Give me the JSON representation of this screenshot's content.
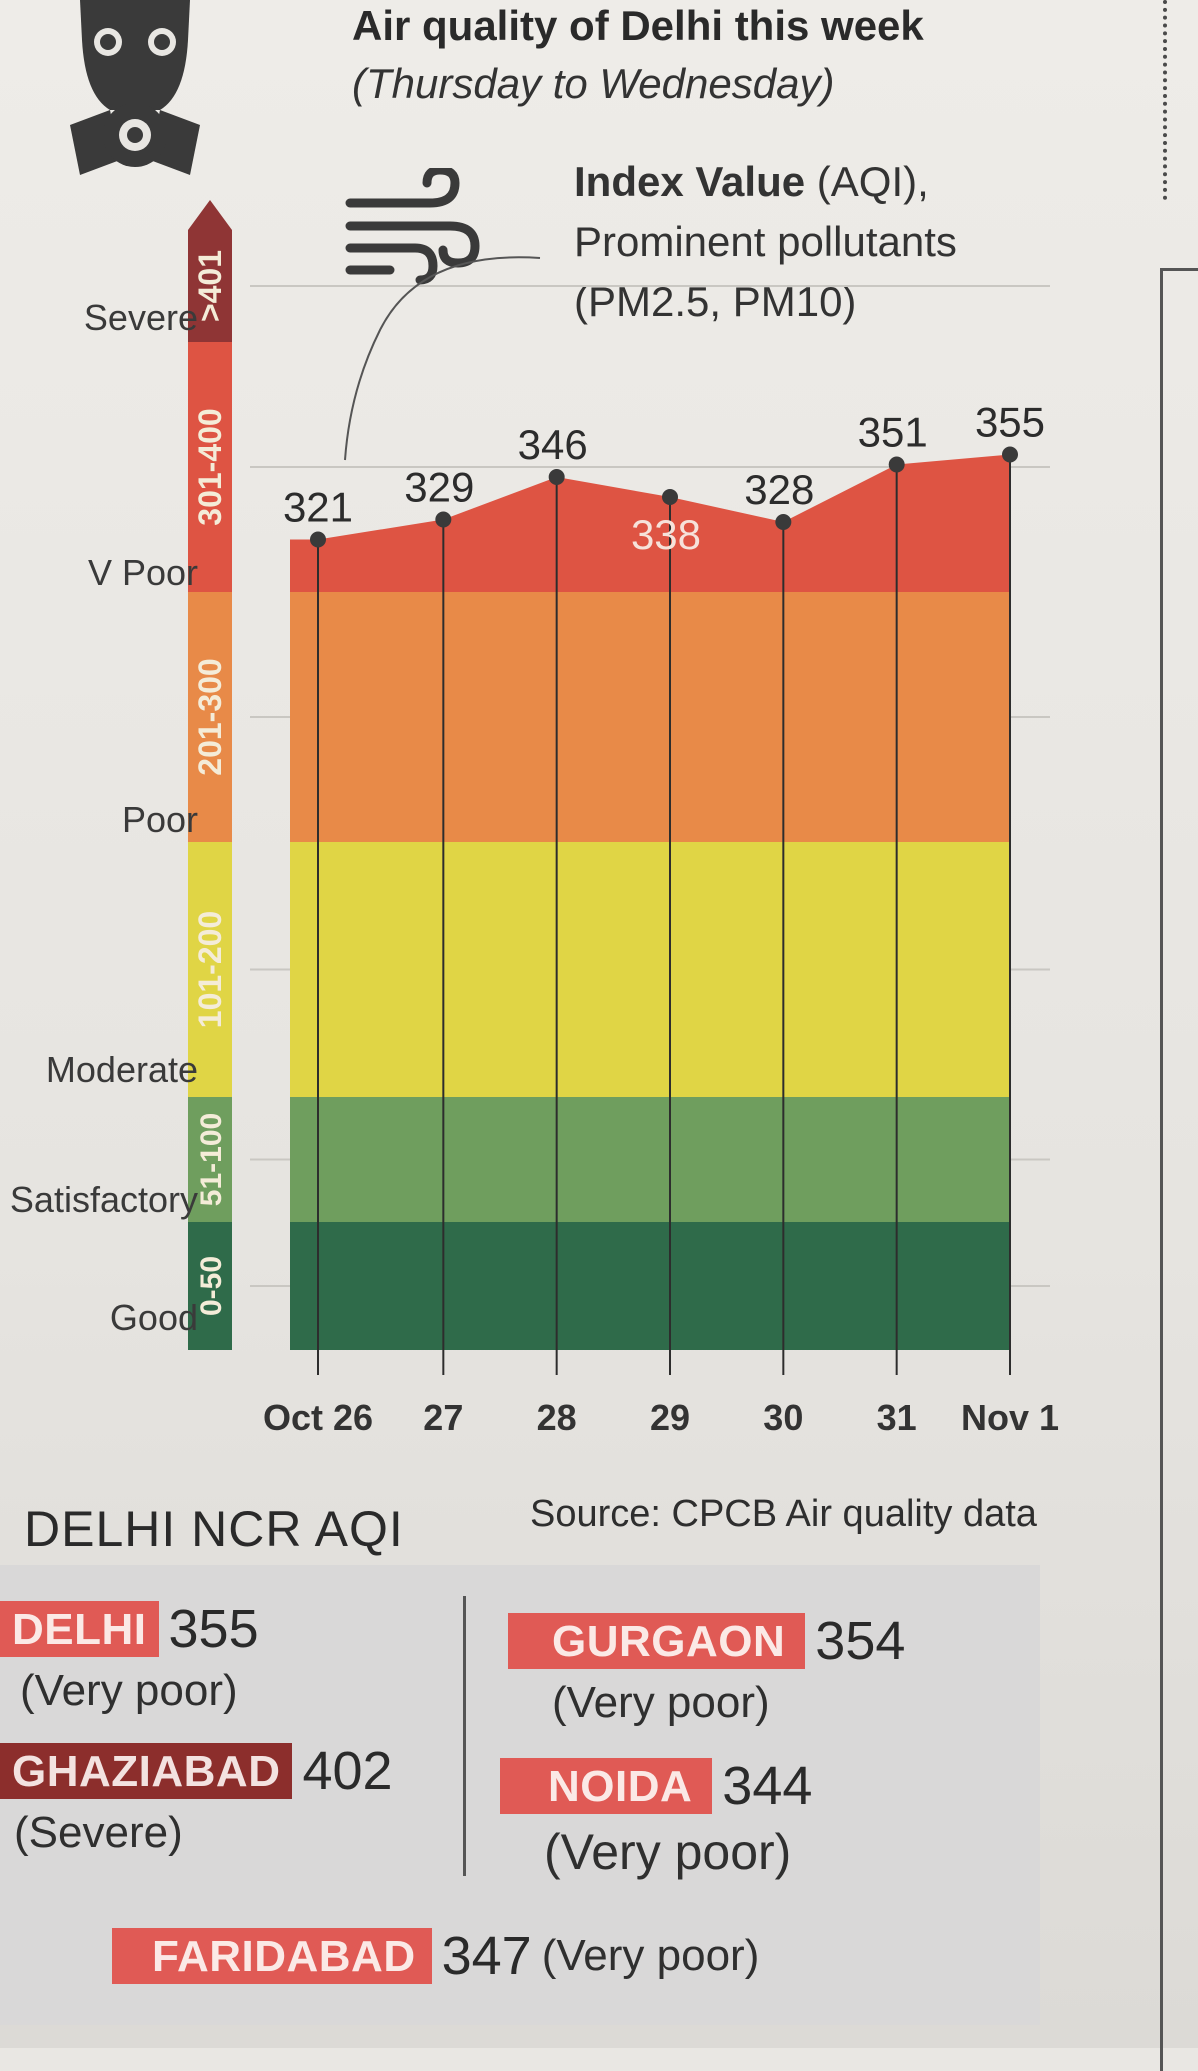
{
  "header": {
    "title": "Air quality of Delhi this week",
    "subtitle": "(Thursday to Wednesday)",
    "legend_bold": "Index Value",
    "legend_rest": " (AQI),",
    "legend_line2": "Prominent pollutants",
    "legend_line3": "(PM2.5, PM10)"
  },
  "icons": {
    "mask": "gas-mask-icon",
    "wind": "wind-icon"
  },
  "colors": {
    "good": "#2f6b4a",
    "satisfactory": "#6f9e5e",
    "moderate": "#e0d545",
    "poor": "#e88a48",
    "very_poor": "#de5443",
    "severe": "#8f3535",
    "tag": "#e05a55",
    "tag_severe": "#8c2e2c"
  },
  "chart_data": {
    "type": "area",
    "title": "Air quality of Delhi this week",
    "subtitle": "(Thursday to Wednesday)",
    "ylabel": "Index Value (AQI)",
    "categories": [
      "Oct 26",
      "27",
      "28",
      "29",
      "30",
      "31",
      "Nov 1"
    ],
    "values": [
      321,
      329,
      346,
      338,
      328,
      351,
      355
    ],
    "value_labels": [
      "321",
      "329",
      "346",
      "338",
      "328",
      "351",
      "355"
    ],
    "ylim": [
      0,
      450
    ],
    "bands": [
      {
        "label": "Good",
        "range": "0-50",
        "min": 0,
        "max": 50
      },
      {
        "label": "Satisfactory",
        "range": "51-100",
        "min": 50,
        "max": 100
      },
      {
        "label": "Moderate",
        "range": "101-200",
        "min": 100,
        "max": 200
      },
      {
        "label": "Poor",
        "range": "201-300",
        "min": 200,
        "max": 300
      },
      {
        "label": "V Poor",
        "range": "301-400",
        "min": 300,
        "max": 400
      },
      {
        "label": "Severe",
        "range": ">401",
        "min": 400,
        "max": 450
      }
    ],
    "source": "Source: CPCB Air quality data"
  },
  "ncr": {
    "title": "DELHI NCR AQI",
    "cities": [
      {
        "name": "DELHI",
        "value": "355",
        "status": "(Very poor)",
        "severe": false
      },
      {
        "name": "GHAZIABAD",
        "value": "402",
        "status": "(Severe)",
        "severe": true
      },
      {
        "name": "GURGAON",
        "value": "354",
        "status": "(Very poor)",
        "severe": false
      },
      {
        "name": "NOIDA",
        "value": "344",
        "status": "(Very poor)",
        "severe": false
      },
      {
        "name": "FARIDABAD",
        "value": "347",
        "status": "(Very poor)",
        "severe": false
      }
    ]
  }
}
